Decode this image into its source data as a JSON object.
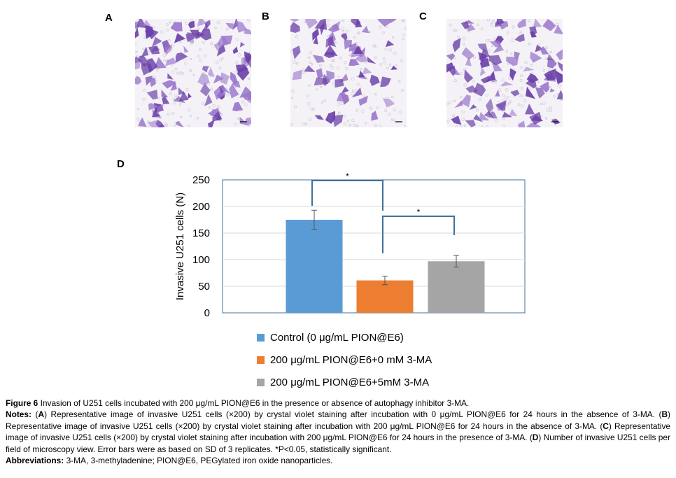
{
  "panels": {
    "a": {
      "letter": "A"
    },
    "b": {
      "letter": "B"
    },
    "c": {
      "letter": "C"
    },
    "d": {
      "letter": "D"
    }
  },
  "colors": {
    "stain": "#6a3fa8",
    "stain_light": "#9b78cc",
    "control": "#5b9bd5",
    "pion": "#ed7d31",
    "pion_3ma": "#a5a5a5",
    "bracket": "#41719c"
  },
  "chart_data": {
    "type": "bar",
    "categories": [
      "Control (0 μg/mL PION@E6)",
      "200 μg/mL PION@E6+0 mM 3-MA",
      "200 μg/mL PION@E6+5mM 3-MA"
    ],
    "values": [
      175,
      61,
      97
    ],
    "errors": [
      18,
      8,
      11
    ],
    "ylabel": "Invasive U251 cells (N)",
    "ylim": [
      0,
      250
    ],
    "yticks": [
      "0",
      "50",
      "100",
      "150",
      "200",
      "250"
    ],
    "grid": true,
    "significance": [
      {
        "between": [
          0,
          1
        ],
        "label": "*"
      },
      {
        "between": [
          1,
          2
        ],
        "label": "*"
      }
    ],
    "legend": [
      {
        "label": "Control (0 μg/mL PION@E6)"
      },
      {
        "label": "200 μg/mL PION@E6+0 mM 3-MA"
      },
      {
        "label": "200 μg/mL PION@E6+5mM 3-MA"
      }
    ],
    "legend_position": "bottom"
  },
  "caption": {
    "figure_label": "Figure 6",
    "title": "Invasion of U251 cells incubated with 200 μg/mL PION@E6 in the presence or absence of autophagy inhibitor 3-MA.",
    "notes_label": "Notes:",
    "notes": [
      {
        "label": "A",
        "text": "Representative image of invasive U251 cells (×200) by crystal violet staining after incubation with 0 μg/mL PION@E6 for 24 hours in the absence of 3-MA."
      },
      {
        "label": "B",
        "text": "Representative image of invasive U251 cells (×200) by crystal violet staining after incubation with 200 μg/mL PION@E6 for 24 hours in the absence of 3-MA."
      },
      {
        "label": "C",
        "text": "Representative image of invasive U251 cells (×200) by crystal violet staining after incubation with 200 μg/mL PION@E6 for 24 hours in the presence of 3-MA."
      },
      {
        "label": "D",
        "text": "Number of invasive U251 cells per field of microscopy view. Error bars were as based on SD of 3 replicates. *P<0.05, statistically significant."
      }
    ],
    "abbreviations_label": "Abbreviations:",
    "abbreviations": "3-MA, 3-methyladenine; PION@E6, PEGylated iron oxide nanoparticles."
  }
}
